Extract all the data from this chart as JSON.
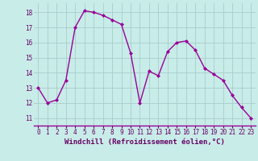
{
  "x": [
    0,
    1,
    2,
    3,
    4,
    5,
    6,
    7,
    8,
    9,
    10,
    11,
    12,
    13,
    14,
    15,
    16,
    17,
    18,
    19,
    20,
    21,
    22,
    23
  ],
  "y": [
    13,
    12,
    12.2,
    13.5,
    17,
    18.1,
    18,
    17.8,
    17.5,
    17.2,
    15.3,
    12,
    14.1,
    13.8,
    15.4,
    16.0,
    16.1,
    15.5,
    14.3,
    13.9,
    13.5,
    12.5,
    11.7,
    11.0
  ],
  "line_color": "#990099",
  "marker": "D",
  "marker_size": 2.0,
  "line_width": 1.0,
  "bg_color": "#c8ece8",
  "grid_color": "#aacccc",
  "spine_color": "#990099",
  "xlabel": "Windchill (Refroidissement éolien,°C)",
  "xlabel_fontsize": 6.5,
  "xlabel_color": "#660066",
  "tick_color": "#660066",
  "tick_fontsize": 5.5,
  "xlim": [
    -0.5,
    23.5
  ],
  "ylim": [
    10.5,
    18.6
  ],
  "yticks": [
    11,
    12,
    13,
    14,
    15,
    16,
    17,
    18
  ],
  "xticks": [
    0,
    1,
    2,
    3,
    4,
    5,
    6,
    7,
    8,
    9,
    10,
    11,
    12,
    13,
    14,
    15,
    16,
    17,
    18,
    19,
    20,
    21,
    22,
    23
  ]
}
